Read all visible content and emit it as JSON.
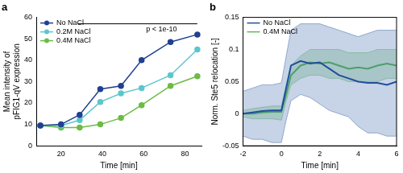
{
  "chart_data": [
    {
      "type": "line",
      "title": "a",
      "xlabel": "Time [min]",
      "ylabel": [
        "Mean intensity of",
        "pFIG1-qV expression"
      ],
      "xlim": [
        8,
        88
      ],
      "xticks": [
        20,
        40,
        60,
        80
      ],
      "ylim": [
        0,
        60
      ],
      "yticks": [
        0,
        10,
        20,
        30,
        40,
        50,
        60
      ],
      "grid": false,
      "legend": "upper left",
      "x": [
        10,
        20,
        29,
        39,
        49,
        59,
        73,
        86
      ],
      "series": [
        {
          "name": "No NaCl",
          "color": "#21408f",
          "marker": "circle",
          "values": [
            9.5,
            10,
            14.5,
            26.5,
            28,
            40,
            48.5,
            52
          ]
        },
        {
          "name": "0.2M NaCl",
          "color": "#5cc6cf",
          "marker": "circle",
          "values": [
            9.5,
            9.5,
            12,
            20.5,
            24.5,
            27,
            33,
            45
          ]
        },
        {
          "name": "0.4M NaCl",
          "color": "#6cbb45",
          "marker": "circle",
          "values": [
            9.5,
            8.5,
            8.5,
            10,
            13,
            19,
            28,
            32.5
          ]
        }
      ],
      "annotations": [
        {
          "text": "p < 1e-10",
          "x": [
            28,
            86
          ],
          "y": 57
        }
      ]
    },
    {
      "type": "line",
      "title": "b",
      "xlabel": "Time [min]",
      "ylabel": "Norm. Ste5 relocation [-]",
      "xlim": [
        -2,
        6
      ],
      "xticks": [
        -2,
        0,
        2,
        4,
        6
      ],
      "ylim": [
        -0.05,
        0.15
      ],
      "yticks": [
        -0.05,
        0,
        0.05,
        0.1,
        0.15
      ],
      "grid": false,
      "legend": "upper left",
      "x": [
        -2,
        -1.5,
        -1,
        -0.5,
        0,
        0.25,
        0.5,
        1,
        1.5,
        2,
        2.5,
        3,
        3.5,
        4,
        4.5,
        5,
        5.5,
        6
      ],
      "series": [
        {
          "name": "No NaCl",
          "color": "#1f4e9c",
          "values": [
            0,
            0.002,
            0.004,
            0.005,
            0.005,
            0.04,
            0.075,
            0.082,
            0.078,
            0.08,
            0.07,
            0.06,
            0.055,
            0.05,
            0.048,
            0.048,
            0.045,
            0.05
          ],
          "lower": [
            -0.035,
            -0.04,
            -0.04,
            -0.045,
            -0.045,
            -0.01,
            0.02,
            0.03,
            0.025,
            0.015,
            0.005,
            0,
            -0.005,
            -0.02,
            -0.03,
            -0.03,
            -0.035,
            -0.035
          ],
          "upper": [
            0.035,
            0.04,
            0.045,
            0.045,
            0.048,
            0.09,
            0.13,
            0.14,
            0.14,
            0.14,
            0.135,
            0.13,
            0.125,
            0.12,
            0.125,
            0.13,
            0.13,
            0.13
          ]
        },
        {
          "name": "0.4M NaCl",
          "color": "#5cb85c",
          "values": [
            0,
            0,
            0.002,
            0.003,
            0.003,
            0.03,
            0.06,
            0.075,
            0.08,
            0.078,
            0.08,
            0.075,
            0.07,
            0.072,
            0.07,
            0.075,
            0.078,
            0.075
          ],
          "lower": [
            -0.005,
            -0.008,
            -0.008,
            -0.008,
            -0.01,
            0.02,
            0.045,
            0.055,
            0.06,
            0.06,
            0.055,
            0.055,
            0.05,
            0.05,
            0.05,
            0.05,
            0.055,
            0.055
          ],
          "upper": [
            0.005,
            0.008,
            0.01,
            0.012,
            0.012,
            0.045,
            0.075,
            0.09,
            0.1,
            0.1,
            0.1,
            0.1,
            0.095,
            0.095,
            0.095,
            0.1,
            0.1,
            0.1
          ]
        }
      ]
    }
  ]
}
